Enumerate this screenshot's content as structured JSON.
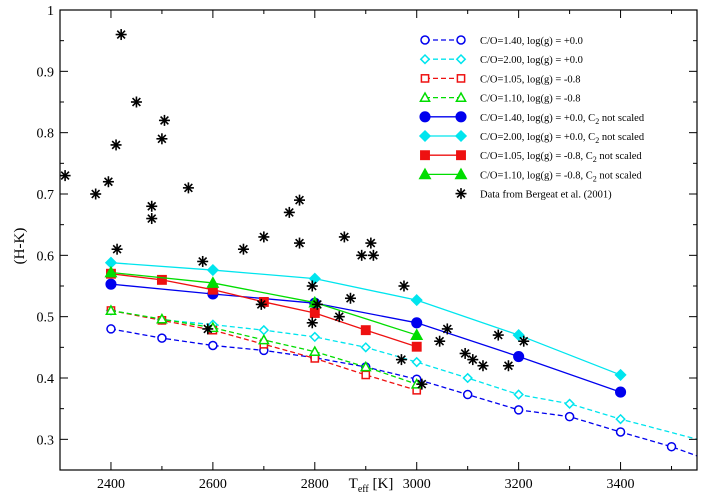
{
  "chart_data": {
    "type": "line",
    "xlim": [
      2300,
      3550
    ],
    "ylim": [
      0.25,
      1.0
    ],
    "xticks": [
      2400,
      2600,
      2800,
      3000,
      3200,
      3400
    ],
    "yticks": [
      0.3,
      0.4,
      0.5,
      0.6,
      0.7,
      0.8,
      0.9,
      1.0
    ],
    "xtick_labels": [
      "2400",
      "2600",
      "2800",
      "3000",
      "3200",
      "3400"
    ],
    "ytick_labels": [
      "0.3",
      "0.4",
      "0.5",
      "0.6",
      "0.7",
      "0.8",
      "0.9",
      "1"
    ],
    "xlabel": {
      "main": "T",
      "sub": "eff",
      "rest": " [K]"
    },
    "ylabel": "(H-K)",
    "grid": false,
    "legend_position": "top-right",
    "series": [
      {
        "name": "C/O=1.40, log(g) = +0.0",
        "legend": {
          "main": "C/O=1.40, log(g) = +0.0",
          "sub": "",
          "rest": ""
        },
        "color": "#0000ee",
        "dash": true,
        "marker": "circle",
        "filled": false,
        "x": [
          2400,
          2500,
          2600,
          2700,
          2800,
          2900,
          3000,
          3100,
          3200,
          3300,
          3400,
          3500,
          3560
        ],
        "y": [
          0.48,
          0.465,
          0.453,
          0.445,
          0.433,
          0.418,
          0.398,
          0.373,
          0.348,
          0.337,
          0.312,
          0.288,
          0.27
        ],
        "markers_upto": 3500
      },
      {
        "name": "C/O=2.00, log(g) = +0.0",
        "legend": {
          "main": "C/O=2.00, log(g) = +0.0",
          "sub": "",
          "rest": ""
        },
        "color": "#00e5ee",
        "dash": true,
        "marker": "diamond",
        "filled": false,
        "x": [
          2400,
          2500,
          2600,
          2700,
          2800,
          2900,
          3000,
          3100,
          3200,
          3300,
          3400,
          3560
        ],
        "y": [
          0.51,
          0.495,
          0.487,
          0.478,
          0.467,
          0.45,
          0.426,
          0.4,
          0.373,
          0.358,
          0.333,
          0.298
        ],
        "markers_upto": 3400
      },
      {
        "name": "C/O=1.05, log(g) = -0.8",
        "legend": {
          "main": "C/O=1.05, log(g) = -0.8",
          "sub": "",
          "rest": ""
        },
        "color": "#ee1111",
        "dash": true,
        "marker": "square",
        "filled": false,
        "x": [
          2400,
          2500,
          2600,
          2700,
          2800,
          2900,
          3000
        ],
        "y": [
          0.51,
          0.494,
          0.478,
          0.455,
          0.432,
          0.405,
          0.38
        ],
        "markers_upto": 3000
      },
      {
        "name": "C/O=1.10, log(g) = -0.8",
        "legend": {
          "main": "C/O=1.10, log(g) = -0.8",
          "sub": "",
          "rest": ""
        },
        "color": "#00dd00",
        "dash": true,
        "marker": "triangle",
        "filled": false,
        "x": [
          2400,
          2500,
          2600,
          2700,
          2800,
          2900,
          3000
        ],
        "y": [
          0.51,
          0.496,
          0.482,
          0.462,
          0.443,
          0.418,
          0.39
        ],
        "markers_upto": 3000
      },
      {
        "name": "C/O=1.40, log(g) = +0.0, C2 not scaled",
        "legend": {
          "main": "C/O=1.40, log(g) = +0.0, C",
          "sub": "2",
          "rest": " not scaled"
        },
        "color": "#0000ee",
        "dash": false,
        "marker": "circle",
        "filled": true,
        "x": [
          2400,
          2600,
          2800,
          3000,
          3200,
          3400
        ],
        "y": [
          0.553,
          0.537,
          0.522,
          0.49,
          0.435,
          0.377
        ],
        "markers_upto": 3400
      },
      {
        "name": "C/O=2.00, log(g) = +0.0, C2 not scaled",
        "legend": {
          "main": "C/O=2.00, log(g) = +0.0, C",
          "sub": "2",
          "rest": " not scaled"
        },
        "color": "#00e5ee",
        "dash": false,
        "marker": "diamond",
        "filled": true,
        "x": [
          2400,
          2600,
          2800,
          3000,
          3200,
          3400
        ],
        "y": [
          0.588,
          0.576,
          0.562,
          0.527,
          0.47,
          0.405
        ],
        "markers_upto": 3400
      },
      {
        "name": "C/O=1.05, log(g) = -0.8, C2 not scaled",
        "legend": {
          "main": "C/O=1.05, log(g) = -0.8, C",
          "sub": "2",
          "rest": " not scaled"
        },
        "color": "#ee1111",
        "dash": false,
        "marker": "square",
        "filled": true,
        "x": [
          2400,
          2500,
          2600,
          2700,
          2800,
          2900,
          3000
        ],
        "y": [
          0.57,
          0.56,
          0.544,
          0.524,
          0.506,
          0.478,
          0.451
        ],
        "markers_upto": 3000
      },
      {
        "name": "C/O=1.10, log(g) = -0.8, C2 not scaled",
        "legend": {
          "main": "C/O=1.10, log(g) = -0.8, C",
          "sub": "2",
          "rest": " not scaled"
        },
        "color": "#00dd00",
        "dash": false,
        "marker": "triangle",
        "filled": true,
        "x": [
          2400,
          2600,
          2800,
          3000
        ],
        "y": [
          0.572,
          0.555,
          0.523,
          0.47
        ],
        "markers_upto": 3000
      }
    ],
    "observations": {
      "name": "Data from Bergeat et al. (2001)",
      "legend": {
        "main": "Data from Bergeat et al. (2001)",
        "sub": "",
        "rest": ""
      },
      "marker": "star",
      "color": "#000000",
      "points": [
        [
          2310,
          0.73
        ],
        [
          2370,
          0.7
        ],
        [
          2395,
          0.72
        ],
        [
          2410,
          0.78
        ],
        [
          2412,
          0.61
        ],
        [
          2420,
          0.96
        ],
        [
          2450,
          0.85
        ],
        [
          2480,
          0.68
        ],
        [
          2480,
          0.66
        ],
        [
          2500,
          0.79
        ],
        [
          2505,
          0.82
        ],
        [
          2552,
          0.71
        ],
        [
          2580,
          0.59
        ],
        [
          2590,
          0.48
        ],
        [
          2660,
          0.61
        ],
        [
          2700,
          0.63
        ],
        [
          2695,
          0.52
        ],
        [
          2750,
          0.67
        ],
        [
          2770,
          0.69
        ],
        [
          2770,
          0.62
        ],
        [
          2795,
          0.55
        ],
        [
          2795,
          0.49
        ],
        [
          2805,
          0.52
        ],
        [
          2848,
          0.5
        ],
        [
          2858,
          0.63
        ],
        [
          2870,
          0.53
        ],
        [
          2892,
          0.6
        ],
        [
          2910,
          0.62
        ],
        [
          2915,
          0.6
        ],
        [
          2975,
          0.55
        ],
        [
          2970,
          0.43
        ],
        [
          3010,
          0.39
        ],
        [
          3045,
          0.46
        ],
        [
          3060,
          0.48
        ],
        [
          3095,
          0.44
        ],
        [
          3110,
          0.43
        ],
        [
          3130,
          0.42
        ],
        [
          3160,
          0.47
        ],
        [
          3180,
          0.42
        ],
        [
          3210,
          0.46
        ]
      ]
    }
  }
}
